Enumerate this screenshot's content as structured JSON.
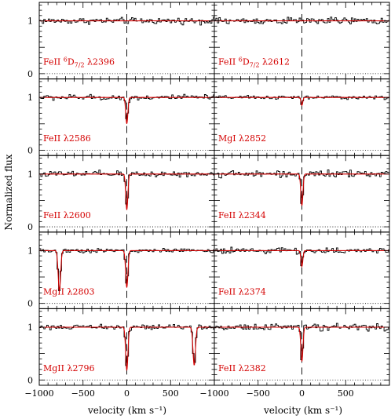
{
  "chart_data": {
    "type": "line",
    "y_axis_label": "Normalized flux",
    "x_axis_label": "velocity (km s⁻¹)",
    "x_range": [
      -1000,
      1000
    ],
    "y_range": [
      -0.1,
      1.35
    ],
    "x_ticks": [
      -1000,
      -500,
      0,
      500
    ],
    "y_ticks": [
      0,
      0.5,
      1
    ],
    "y_tick_labels": [
      "0",
      "1"
    ],
    "x_tick_labels_left": [
      "−1000",
      "−500",
      "0",
      "500"
    ],
    "x_tick_labels_right": [
      "−1000",
      "−500",
      "0",
      "500"
    ],
    "model_color": "#d40000",
    "spectrum_color": "#000000",
    "zero_velocity_marker": 0,
    "panels": [
      {
        "label": "FeII ⁶D₇₂ λ2396",
        "ion": "FeII",
        "sup": "6",
        "sub": "7/2",
        "wl": "λ2396",
        "col": 0,
        "row": 0,
        "absorption": [],
        "noise": 0.045
      },
      {
        "label": "FeII ⁶D₇₂ λ2612",
        "ion": "FeII",
        "sup": "6",
        "sub": "7/2",
        "wl": "λ2612",
        "col": 1,
        "row": 0,
        "absorption": [],
        "noise": 0.05
      },
      {
        "label": "FeII λ2586",
        "ion": "FeII",
        "wl": "λ2586",
        "col": 0,
        "row": 1,
        "absorption": [
          {
            "v": 0,
            "depth": 0.5,
            "width": 12
          }
        ],
        "noise": 0.04
      },
      {
        "label": "MgI λ2852",
        "ion": "MgI",
        "wl": "λ2852",
        "col": 1,
        "row": 1,
        "absorption": [
          {
            "v": 0,
            "depth": 0.15,
            "width": 10
          }
        ],
        "noise": 0.025
      },
      {
        "label": "FeII λ2600",
        "ion": "FeII",
        "wl": "λ2600",
        "col": 0,
        "row": 2,
        "absorption": [
          {
            "v": 0,
            "depth": 0.68,
            "width": 12
          }
        ],
        "noise": 0.045
      },
      {
        "label": "FeII λ2344",
        "ion": "FeII",
        "wl": "λ2344",
        "col": 1,
        "row": 2,
        "absorption": [
          {
            "v": 0,
            "depth": 0.6,
            "width": 12
          }
        ],
        "noise": 0.045
      },
      {
        "label": "MgII λ2803",
        "ion": "MgII",
        "wl": "λ2803",
        "col": 0,
        "row": 3,
        "absorption": [
          {
            "v": 0,
            "depth": 0.7,
            "width": 13
          },
          {
            "v": -770,
            "depth": 0.75,
            "width": 14
          }
        ],
        "noise": 0.03
      },
      {
        "label": "FeII λ2374",
        "ion": "FeII",
        "wl": "λ2374",
        "col": 1,
        "row": 3,
        "absorption": [
          {
            "v": 0,
            "depth": 0.3,
            "width": 11
          }
        ],
        "noise": 0.04
      },
      {
        "label": "MgII λ2796",
        "ion": "MgII",
        "wl": "λ2796",
        "col": 0,
        "row": 4,
        "absorption": [
          {
            "v": 0,
            "depth": 0.82,
            "width": 13
          },
          {
            "v": 770,
            "depth": 0.72,
            "width": 14
          }
        ],
        "noise": 0.035
      },
      {
        "label": "FeII λ2382",
        "ion": "FeII",
        "wl": "λ2382",
        "col": 1,
        "row": 4,
        "absorption": [
          {
            "v": 0,
            "depth": 0.65,
            "width": 12
          }
        ],
        "noise": 0.045
      }
    ]
  }
}
